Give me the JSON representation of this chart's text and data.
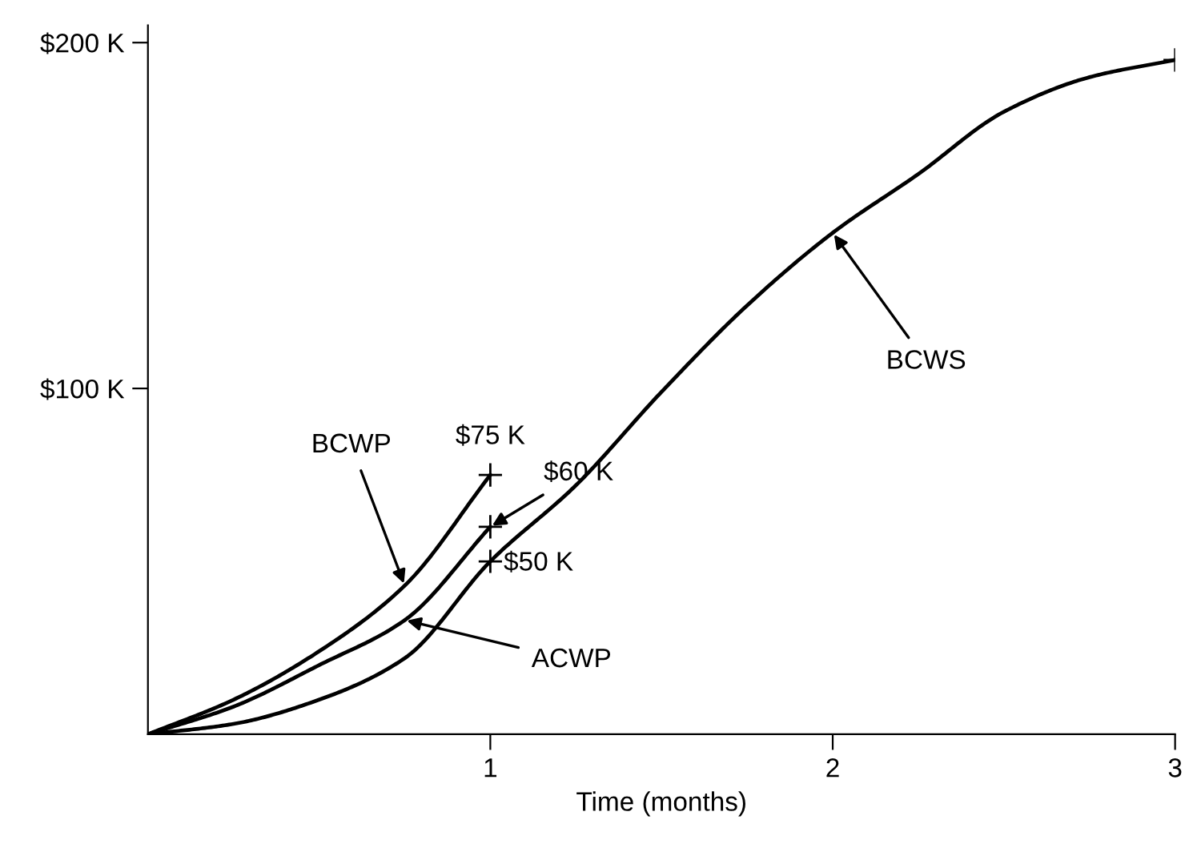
{
  "chart_data": {
    "type": "line",
    "xlabel": "Time (months)",
    "xlim": [
      0,
      3
    ],
    "xticks": [
      1,
      2,
      3
    ],
    "ylim": [
      0,
      205
    ],
    "yticks": [
      {
        "value": 100,
        "label": "$100 K"
      },
      {
        "value": 200,
        "label": "$200 K"
      }
    ],
    "grid": false,
    "legend": false,
    "marker": "none",
    "line_style": "solid",
    "series": [
      {
        "color": "#000000",
        "x": [
          0,
          0.25,
          0.5,
          0.75,
          1,
          1.25,
          1.5,
          1.75,
          2,
          2.25,
          2.5,
          2.75,
          3
        ],
        "values": [
          0,
          3,
          10,
          22,
          50,
          72,
          99,
          124,
          145,
          162,
          180,
          190,
          195
        ]
      },
      {
        "color": "#000000",
        "x": [
          0,
          0.25,
          0.5,
          0.75,
          1
        ],
        "values": [
          0,
          8,
          20,
          33,
          60
        ]
      },
      {
        "color": "#000000",
        "x": [
          0,
          0.25,
          0.5,
          0.75,
          1
        ],
        "values": [
          0,
          10,
          24,
          43,
          75
        ]
      },
      {
        "type": "scatter",
        "marker": "cross",
        "color": "#000000",
        "x": [
          1,
          1,
          1,
          3
        ],
        "values": [
          75,
          60,
          50,
          195
        ]
      }
    ],
    "annotations": [
      {
        "text": "BCWS",
        "x": 2,
        "y": 145
      },
      {
        "text": "BCWP",
        "x": 0.75,
        "y": 43
      },
      {
        "text": "ACWP",
        "x": 0.75,
        "y": 33
      },
      {
        "text": "$75 K",
        "x": 1,
        "y": 75
      },
      {
        "text": "$60 K",
        "x": 1,
        "y": 60
      },
      {
        "text": "$50 K",
        "x": 1,
        "y": 50
      }
    ]
  }
}
